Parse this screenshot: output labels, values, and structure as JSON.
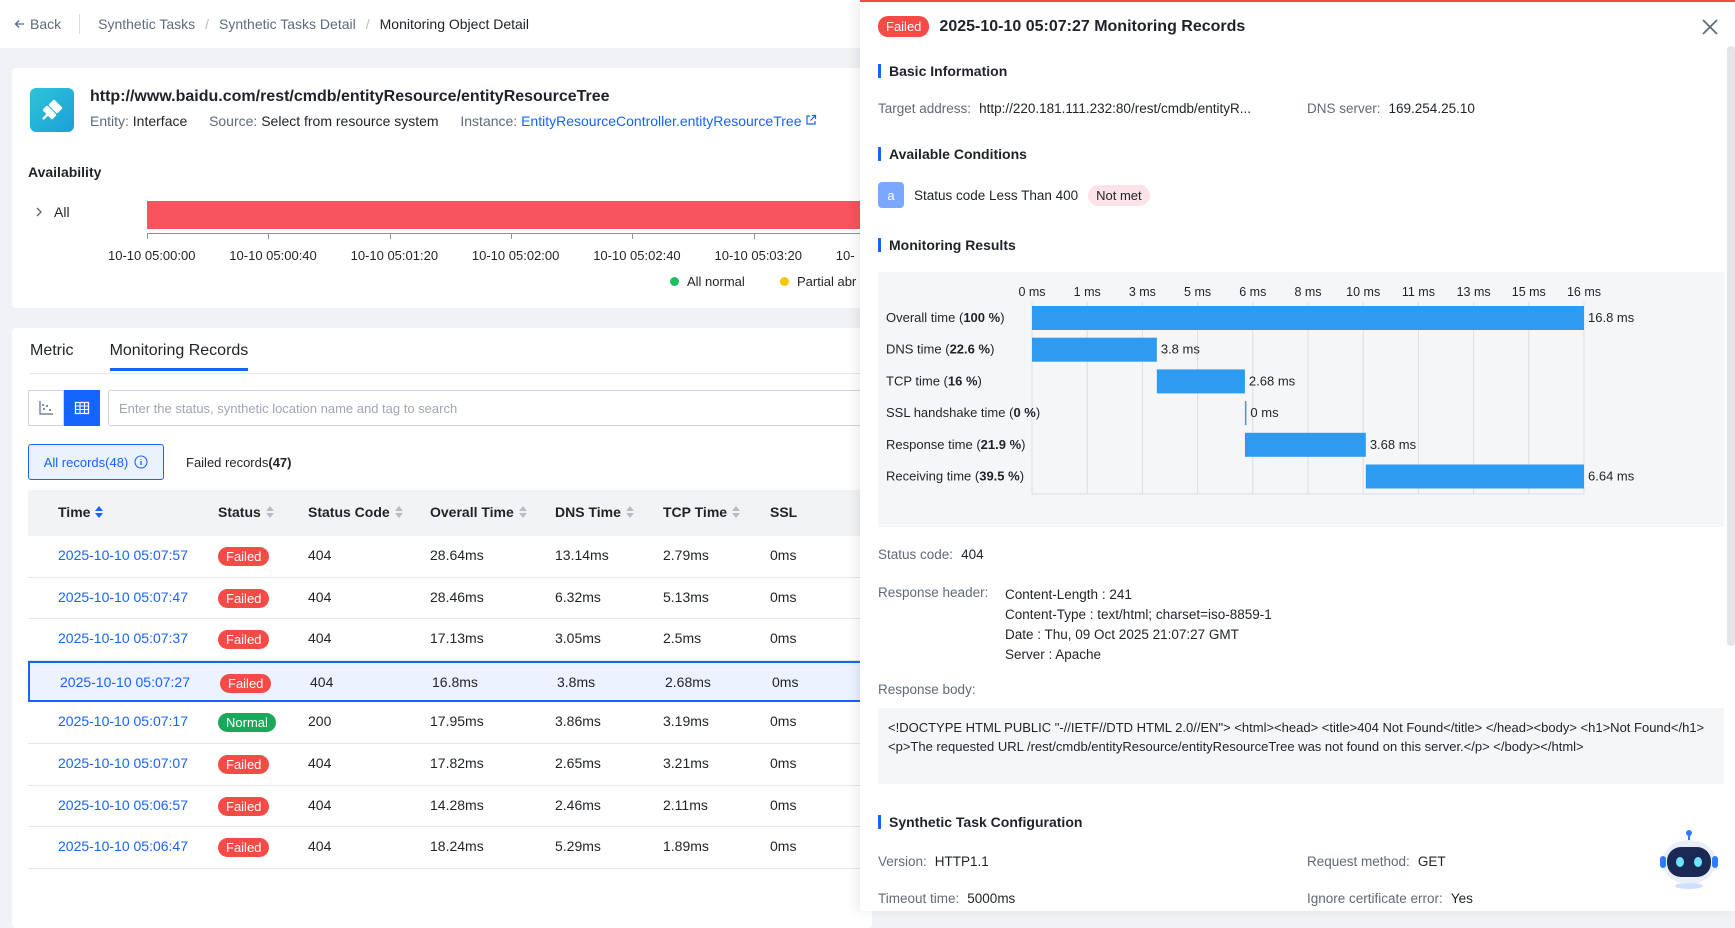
{
  "topbar": {
    "back": "Back",
    "breadcrumbs": [
      "Synthetic Tasks",
      "Synthetic Tasks Detail",
      "Monitoring Object Detail"
    ]
  },
  "header": {
    "url": "http://www.baidu.com/rest/cmdb/entityResource/entityResourceTree",
    "entity_label": "Entity:",
    "entity": "Interface",
    "source_label": "Source:",
    "source": "Select from resource system",
    "instance_label": "Instance:",
    "instance": "EntityResourceController.entityResourceTree"
  },
  "availability": {
    "title": "Availability",
    "row_label": "All",
    "ticks": [
      "10-10 05:00:00",
      "10-10 05:00:40",
      "10-10 05:01:20",
      "10-10 05:02:00",
      "10-10 05:02:40",
      "10-10 05:03:20",
      "10-"
    ],
    "legend": [
      {
        "label": "All normal",
        "color": "#1fbf5f"
      },
      {
        "label": "Partial abr",
        "color": "#f7c600"
      }
    ],
    "bar_color": "#f7545d"
  },
  "records": {
    "tabs": [
      "Metric",
      "Monitoring Records"
    ],
    "search_placeholder": "Enter the status, synthetic location name and tag to search",
    "filter_all_label": "All records",
    "filter_all_count": "(48)",
    "filter_failed_label": "Failed records",
    "filter_failed_count": "(47)",
    "columns": [
      "Time",
      "Status",
      "Status Code",
      "Overall Time",
      "DNS Time",
      "TCP Time",
      "SSL"
    ],
    "rows": [
      {
        "time": "2025-10-10 05:07:57",
        "status": "Failed",
        "code": "404",
        "overall": "28.64ms",
        "dns": "13.14ms",
        "tcp": "2.79ms",
        "ssl": "0ms"
      },
      {
        "time": "2025-10-10 05:07:47",
        "status": "Failed",
        "code": "404",
        "overall": "28.46ms",
        "dns": "6.32ms",
        "tcp": "5.13ms",
        "ssl": "0ms"
      },
      {
        "time": "2025-10-10 05:07:37",
        "status": "Failed",
        "code": "404",
        "overall": "17.13ms",
        "dns": "3.05ms",
        "tcp": "2.5ms",
        "ssl": "0ms"
      },
      {
        "time": "2025-10-10 05:07:27",
        "status": "Failed",
        "code": "404",
        "overall": "16.8ms",
        "dns": "3.8ms",
        "tcp": "2.68ms",
        "ssl": "0ms"
      },
      {
        "time": "2025-10-10 05:07:17",
        "status": "Normal",
        "code": "200",
        "overall": "17.95ms",
        "dns": "3.86ms",
        "tcp": "3.19ms",
        "ssl": "0ms"
      },
      {
        "time": "2025-10-10 05:07:07",
        "status": "Failed",
        "code": "404",
        "overall": "17.82ms",
        "dns": "2.65ms",
        "tcp": "3.21ms",
        "ssl": "0ms"
      },
      {
        "time": "2025-10-10 05:06:57",
        "status": "Failed",
        "code": "404",
        "overall": "14.28ms",
        "dns": "2.46ms",
        "tcp": "2.11ms",
        "ssl": "0ms"
      },
      {
        "time": "2025-10-10 05:06:47",
        "status": "Failed",
        "code": "404",
        "overall": "18.24ms",
        "dns": "5.29ms",
        "tcp": "1.89ms",
        "ssl": "0ms"
      }
    ],
    "selected_index": 3,
    "colors": {
      "failed": "#f54a45",
      "normal": "#1aa85a"
    }
  },
  "drawer": {
    "status": "Failed",
    "title": "2025-10-10 05:07:27 Monitoring Records",
    "basic_title": "Basic Information",
    "target_label": "Target address:",
    "target": "http://220.181.111.232:80/rest/cmdb/entityR...",
    "dns_label": "DNS server:",
    "dns": "169.254.25.10",
    "conditions_title": "Available Conditions",
    "condition_letter": "a",
    "condition_text": "Status code Less Than 400",
    "condition_state": "Not met",
    "results_title": "Monitoring Results",
    "status_code_label": "Status code:",
    "status_code": "404",
    "resp_header_label": "Response header:",
    "resp_headers": [
      "Content-Length : 241",
      "Content-Type : text/html; charset=iso-8859-1",
      "Date : Thu, 09 Oct 2025 21:07:27 GMT",
      "Server : Apache"
    ],
    "resp_body_label": "Response body:",
    "resp_body": "<!DOCTYPE HTML PUBLIC \"-//IETF//DTD HTML 2.0//EN\"> <html><head> <title>404 Not Found</title> </head><body> <h1>Not Found</h1> <p>The requested URL /rest/cmdb/entityResource/entityResourceTree was not found on this server.</p> </body></html>",
    "config_title": "Synthetic Task Configuration",
    "version_label": "Version:",
    "version": "HTTP1.1",
    "method_label": "Request method:",
    "method": "GET",
    "timeout_label": "Timeout time:",
    "timeout": "5000ms",
    "ignore_label": "Ignore certificate error:",
    "ignore": "Yes"
  },
  "chart_data": {
    "type": "bar",
    "subtype": "waterfall",
    "axis_ticks": [
      "0 ms",
      "1 ms",
      "3 ms",
      "5 ms",
      "6 ms",
      "8 ms",
      "10 ms",
      "11 ms",
      "13 ms",
      "15 ms",
      "16 ms"
    ],
    "xlim": [
      0,
      16.8
    ],
    "bar_color": "#2f9bf0",
    "rows": [
      {
        "label": "Overall time",
        "pct": "100 %",
        "start": 0,
        "duration": 16.8,
        "value_label": "16.8 ms"
      },
      {
        "label": "DNS time",
        "pct": "22.6 %",
        "start": 0,
        "duration": 3.8,
        "value_label": "3.8 ms"
      },
      {
        "label": "TCP time",
        "pct": "16 %",
        "start": 3.8,
        "duration": 2.68,
        "value_label": "2.68 ms"
      },
      {
        "label": "SSL handshake time",
        "pct": "0 %",
        "start": 6.48,
        "duration": 0,
        "value_label": "0 ms"
      },
      {
        "label": "Response time",
        "pct": "21.9 %",
        "start": 6.48,
        "duration": 3.68,
        "value_label": "3.68 ms"
      },
      {
        "label": "Receiving time",
        "pct": "39.5 %",
        "start": 10.16,
        "duration": 6.64,
        "value_label": "6.64 ms"
      }
    ]
  }
}
